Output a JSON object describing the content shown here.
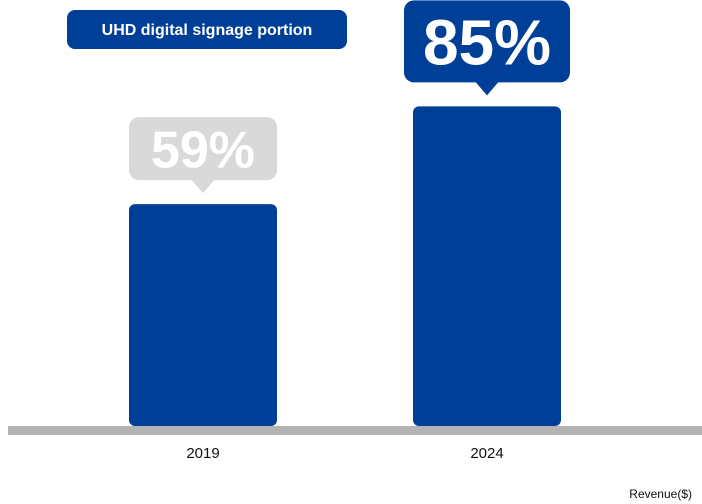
{
  "chart_data": {
    "type": "bar",
    "title": "UHD digital signage portion",
    "categories": [
      "2019",
      "2024"
    ],
    "series": [
      {
        "values": [
          59,
          85
        ],
        "labels": [
          "59%",
          "85%"
        ]
      }
    ],
    "unit_note": "Revenue($)",
    "legend": "none",
    "grid": false,
    "colors": {
      "bar": "#003f97",
      "title_box": "#003f97",
      "highlight_callout": "#003f97",
      "muted_callout": "#d9d9d9",
      "baseline": "#b3b3b3",
      "text": "#111111"
    }
  }
}
